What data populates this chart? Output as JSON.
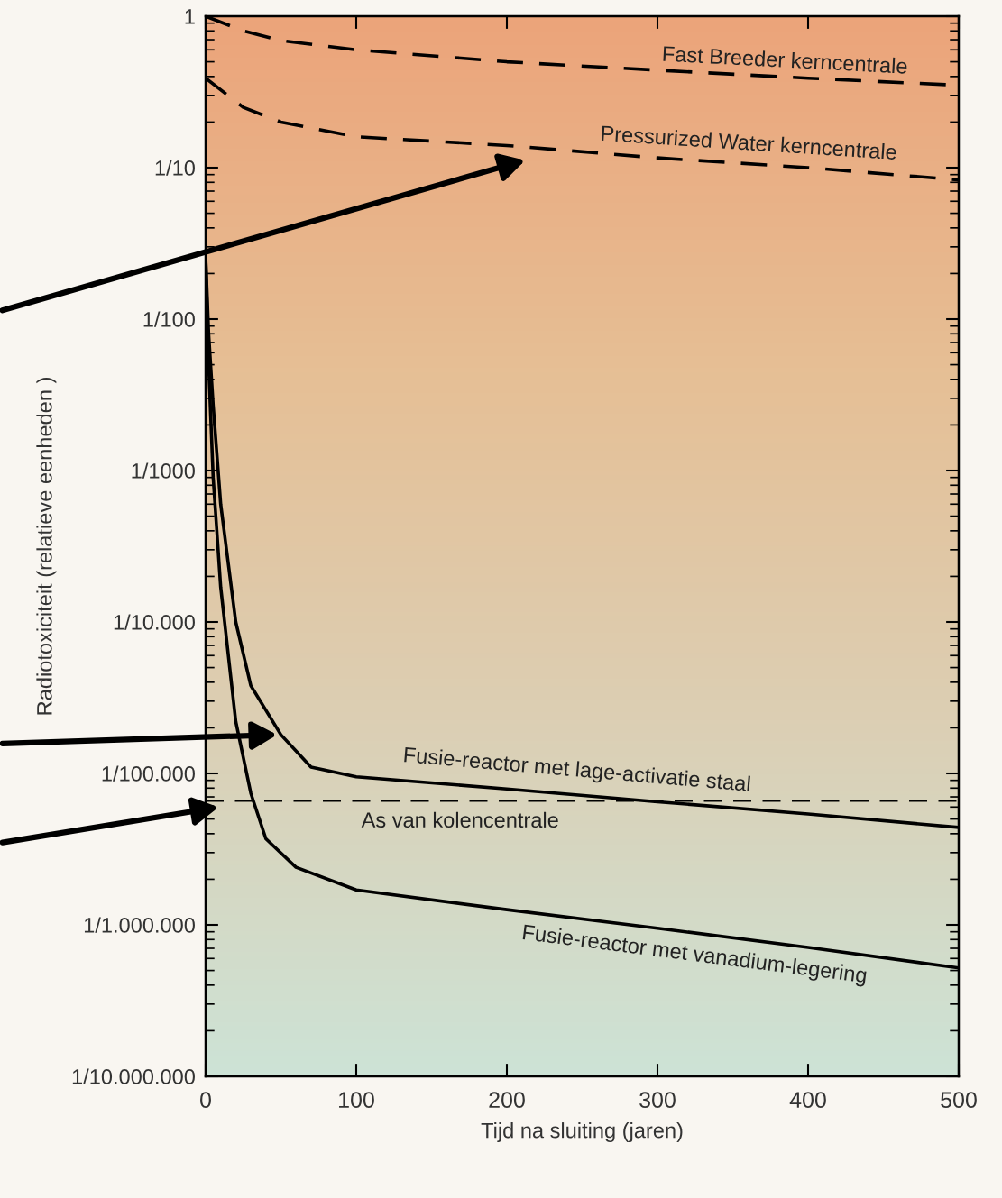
{
  "chart_data": {
    "type": "line",
    "xlabel": "Tijd na sluiting (jaren)",
    "ylabel": "Radiotoxiciteit (relatieve eenheden )",
    "log": "y",
    "xlim": [
      0,
      500
    ],
    "xticks": [
      0,
      100,
      200,
      300,
      400,
      500
    ],
    "ylim": [
      1e-07,
      1
    ],
    "yticks": [
      {
        "value": 1,
        "label": "1"
      },
      {
        "value": 0.1,
        "label": "1/10"
      },
      {
        "value": 0.01,
        "label": "1/100"
      },
      {
        "value": 0.001,
        "label": "1/1000"
      },
      {
        "value": 0.0001,
        "label": "1/10.000"
      },
      {
        "value": 1e-05,
        "label": "1/100.000"
      },
      {
        "value": 1e-06,
        "label": "1/1.000.000"
      },
      {
        "value": 1e-07,
        "label": "1/10.000.000"
      }
    ],
    "grid": false,
    "legend": false,
    "series": [
      {
        "color": "#000000",
        "line_style": "dashed",
        "x": [
          0,
          25,
          50,
          100,
          200,
          300,
          400,
          500
        ],
        "values": [
          1.0,
          0.8,
          0.69,
          0.6,
          0.5,
          0.44,
          0.39,
          0.35
        ]
      },
      {
        "color": "#000000",
        "line_style": "dashed",
        "x": [
          0,
          25,
          50,
          100,
          200,
          300,
          400,
          500
        ],
        "values": [
          0.39,
          0.25,
          0.2,
          0.16,
          0.14,
          0.116,
          0.1,
          0.083
        ]
      },
      {
        "color": "#000000",
        "line_style": "solid",
        "x": [
          0,
          2,
          5,
          10,
          20,
          30,
          50,
          70,
          100,
          200,
          300,
          400,
          500
        ],
        "values": [
          0.026,
          0.008,
          0.0027,
          0.0006,
          0.0001,
          3.8e-05,
          1.8e-05,
          1.1e-05,
          9.5e-06,
          7.9e-06,
          6.5e-06,
          5.4e-06,
          4.4e-06
        ]
      },
      {
        "color": "#000000",
        "line_style": "solid",
        "x": [
          0,
          2,
          5,
          10,
          20,
          30,
          40,
          60,
          100,
          200,
          300,
          400,
          500
        ],
        "values": [
          0.026,
          0.005,
          0.0009,
          0.00017,
          2.2e-05,
          7.4e-06,
          3.7e-06,
          2.4e-06,
          1.7e-06,
          1.26e-06,
          9.5e-07,
          7.1e-07,
          5.2e-07
        ]
      }
    ],
    "ref_lines": [
      {
        "axis": "y",
        "value": 6.6e-06,
        "color": "#000000",
        "line_style": "dashed"
      }
    ],
    "annotations": [
      "Fast Breeder kerncentrale",
      "Pressurized Water kerncentrale",
      "Fusie-reactor met lage-activatie staal",
      "As van kolencentrale",
      "Fusie-reactor met vanadium-legering"
    ]
  }
}
